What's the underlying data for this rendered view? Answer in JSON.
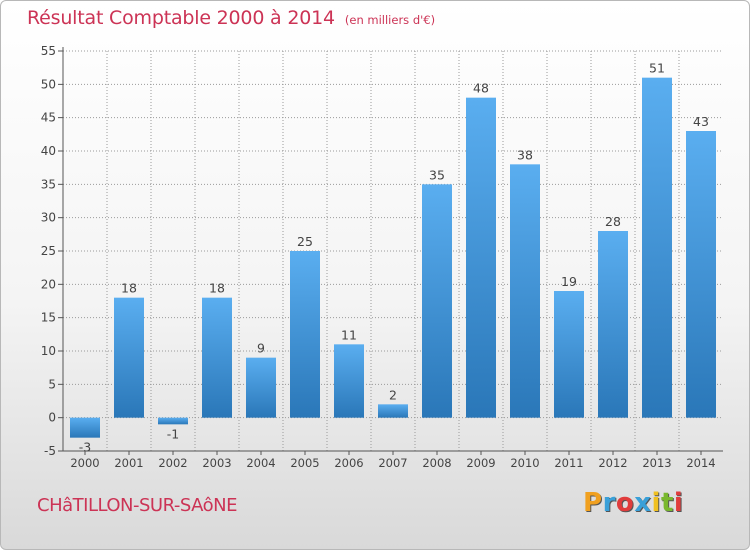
{
  "header": {
    "title": "Résultat Comptable 2000 à 2014",
    "unit_note": "(en milliers d'€)"
  },
  "footer": {
    "place": "CHâTILLON-SUR-SAôNE",
    "brand_letters": [
      "P",
      "r",
      "o",
      "x",
      "i",
      "t",
      "i"
    ],
    "brand_colors": [
      "#f0a020",
      "#3aa0d8",
      "#e03c3c",
      "#3aa0d8",
      "#f0c020",
      "#79b82e",
      "#e03c3c"
    ]
  },
  "colors": {
    "bar_top": "#5aaef0",
    "bar_bottom": "#2a77b8",
    "title": "#cc3355",
    "grid": "#9a9a9a"
  },
  "chart_data": {
    "type": "bar",
    "categories": [
      "2000",
      "2001",
      "2002",
      "2003",
      "2004",
      "2005",
      "2006",
      "2007",
      "2008",
      "2009",
      "2010",
      "2011",
      "2012",
      "2013",
      "2014"
    ],
    "values": [
      -3,
      18,
      -1,
      18,
      9,
      25,
      11,
      2,
      35,
      48,
      38,
      19,
      28,
      51,
      43
    ],
    "title": "Résultat Comptable 2000 à 2014",
    "ylim": [
      -5,
      55
    ],
    "yticks": [
      -5,
      0,
      5,
      10,
      15,
      20,
      25,
      30,
      35,
      40,
      45,
      50,
      55
    ],
    "grid": true
  }
}
